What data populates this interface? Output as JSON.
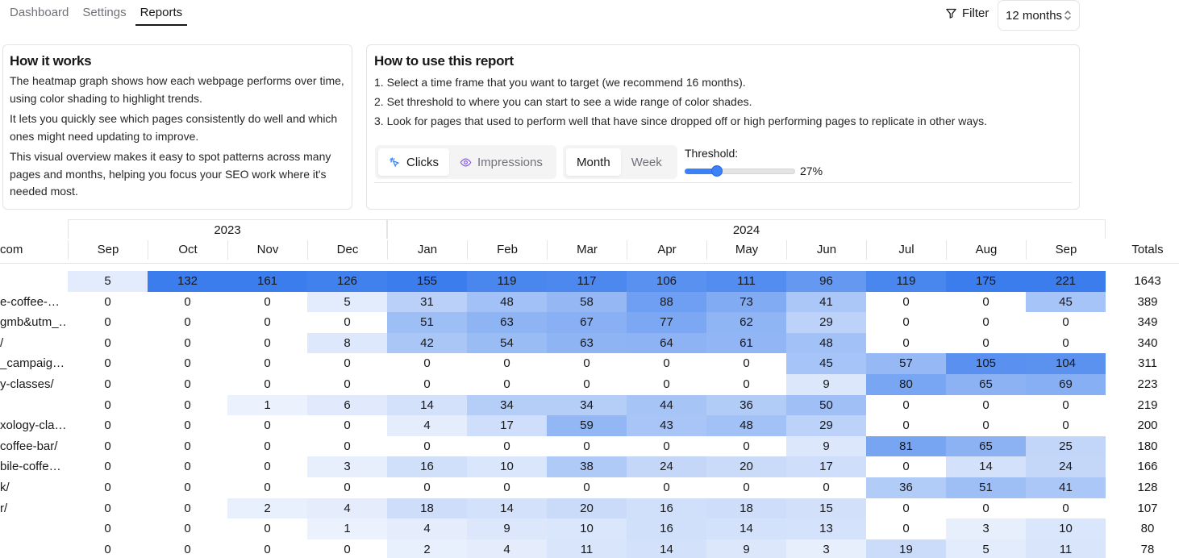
{
  "nav": {
    "tabs": [
      {
        "label": "Dashboard"
      },
      {
        "label": "Settings"
      },
      {
        "label": "Reports"
      }
    ],
    "active_tab": 2
  },
  "toolbar": {
    "filter_label": "Filter",
    "range_value": "12 months"
  },
  "how_it_works": {
    "title": "How it works",
    "paragraphs": [
      "The heatmap graph shows how each webpage performs over time, using color shading to highlight trends.",
      "It lets you quickly see which pages consistently do well and which ones might need updating to improve.",
      "This visual overview makes it easy to spot patterns across many pages and months, helping you focus your SEO work where it's needed most."
    ]
  },
  "how_to_use": {
    "title": "How to use this report",
    "steps": [
      "1. Select a time frame that you want to target (we recommend 16 months).",
      "2. Set threshold to where you can start to see a wide range of color shades.",
      "3. Look for pages that used to perform well that have since dropped off or high performing pages to replicate in other ways."
    ],
    "metric": {
      "clicks_label": "Clicks",
      "impressions_label": "Impressions",
      "selected": "Clicks"
    },
    "period": {
      "month_label": "Month",
      "week_label": "Week",
      "selected": "Month"
    },
    "threshold": {
      "label": "Threshold:",
      "value_label": "27%",
      "value": 27
    }
  },
  "colors": {
    "accent": "#3b82f6",
    "cell_max": "#3b7ded",
    "cell_min": "#eef3fd",
    "border": "#e4e4e7"
  },
  "table": {
    "domain_label": "com",
    "totals_label": "Totals",
    "years": [
      {
        "label": "2023",
        "span": 4
      },
      {
        "label": "2024",
        "span": 9
      }
    ],
    "months": [
      "Sep",
      "Oct",
      "Nov",
      "Dec",
      "Jan",
      "Feb",
      "Mar",
      "Apr",
      "May",
      "Jun",
      "Jul",
      "Aug",
      "Sep"
    ],
    "rows": [
      {
        "page": "",
        "values": [
          5,
          132,
          161,
          126,
          155,
          119,
          117,
          106,
          111,
          96,
          119,
          175,
          221
        ],
        "total": "1643"
      },
      {
        "page": "e-coffee-…",
        "values": [
          0,
          0,
          0,
          5,
          31,
          48,
          58,
          88,
          73,
          41,
          0,
          0,
          45
        ],
        "total": "389"
      },
      {
        "page": "gmb&utm_…",
        "values": [
          0,
          0,
          0,
          0,
          51,
          63,
          67,
          77,
          62,
          29,
          0,
          0,
          0
        ],
        "total": "349"
      },
      {
        "page": "/",
        "values": [
          0,
          0,
          0,
          8,
          42,
          54,
          63,
          64,
          61,
          48,
          0,
          0,
          0
        ],
        "total": "340"
      },
      {
        "page": "_campaig…",
        "values": [
          0,
          0,
          0,
          0,
          0,
          0,
          0,
          0,
          0,
          45,
          57,
          105,
          104
        ],
        "total": "311"
      },
      {
        "page": "y-classes/",
        "values": [
          0,
          0,
          0,
          0,
          0,
          0,
          0,
          0,
          0,
          9,
          80,
          65,
          69
        ],
        "total": "223"
      },
      {
        "page": "",
        "values": [
          0,
          0,
          1,
          6,
          14,
          34,
          34,
          44,
          36,
          50,
          0,
          0,
          0
        ],
        "total": "219"
      },
      {
        "page": "xology-cla…",
        "values": [
          0,
          0,
          0,
          0,
          4,
          17,
          59,
          43,
          48,
          29,
          0,
          0,
          0
        ],
        "total": "200"
      },
      {
        "page": "coffee-bar/",
        "values": [
          0,
          0,
          0,
          0,
          0,
          0,
          0,
          0,
          0,
          9,
          81,
          65,
          25
        ],
        "total": "180"
      },
      {
        "page": "bile-coffe…",
        "values": [
          0,
          0,
          0,
          3,
          16,
          10,
          38,
          24,
          20,
          17,
          0,
          14,
          24
        ],
        "total": "166"
      },
      {
        "page": "k/",
        "values": [
          0,
          0,
          0,
          0,
          0,
          0,
          0,
          0,
          0,
          0,
          36,
          51,
          41
        ],
        "total": "128"
      },
      {
        "page": "r/",
        "values": [
          0,
          0,
          2,
          4,
          18,
          14,
          20,
          16,
          18,
          15,
          0,
          0,
          0
        ],
        "total": "107"
      },
      {
        "page": "",
        "values": [
          0,
          0,
          0,
          1,
          4,
          9,
          10,
          16,
          14,
          13,
          0,
          3,
          10
        ],
        "total": "80"
      },
      {
        "page": "",
        "values": [
          0,
          0,
          0,
          0,
          2,
          4,
          11,
          14,
          9,
          3,
          19,
          5,
          11
        ],
        "total": "78"
      }
    ]
  }
}
